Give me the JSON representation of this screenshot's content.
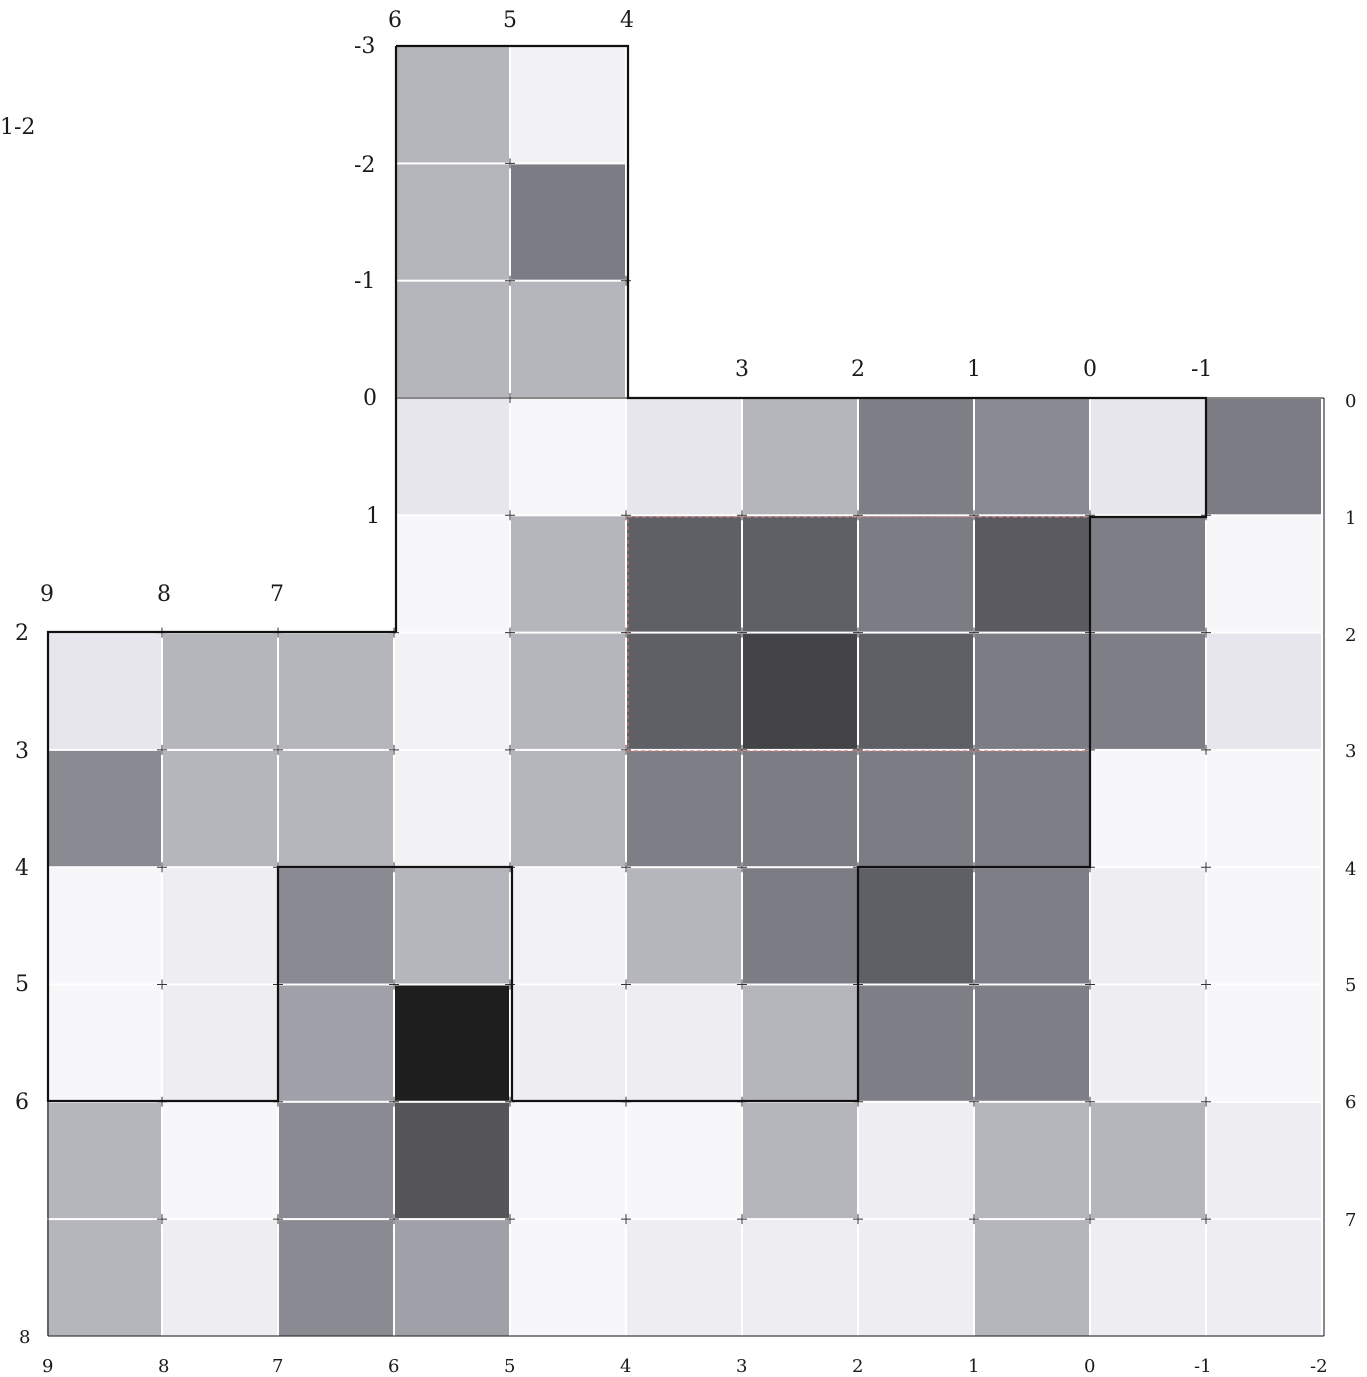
{
  "figure_label": "1-2",
  "upper_top_labels": [
    "6",
    "5",
    "4"
  ],
  "upper_left_labels": [
    "-3",
    "-2",
    "-1",
    "0"
  ],
  "mid_top_labels": [
    "3",
    "2",
    "1",
    "0",
    "-1"
  ],
  "mid_left_labels": [
    "1"
  ],
  "left_top_labels": [
    "9",
    "8",
    "7"
  ],
  "left_side_labels": [
    "2",
    "3",
    "4",
    "5",
    "6",
    "8"
  ],
  "right_side_labels": [
    "0",
    "1",
    "2",
    "3",
    "4",
    "5",
    "6",
    "7"
  ],
  "bottom_labels": [
    "9",
    "8",
    "7",
    "6",
    "5",
    "4",
    "3",
    "2",
    "1",
    "0",
    "-1",
    "-2"
  ],
  "cells": [
    {
      "col": 6,
      "row": -3,
      "shade": "#b5b5bc"
    },
    {
      "col": 5,
      "row": -3,
      "shade": "#f2f2f4"
    },
    {
      "col": 6,
      "row": -2,
      "shade": "#b5b5bc"
    },
    {
      "col": 5,
      "row": -2,
      "shade": "#7c7c84"
    },
    {
      "col": 6,
      "row": -1,
      "shade": "#b5b5bc"
    },
    {
      "col": 5,
      "row": -1,
      "shade": "#b5b5bc"
    },
    {
      "col": 6,
      "row": 0,
      "shade": "#e6e6ec"
    },
    {
      "col": 5,
      "row": 0,
      "shade": "#f7f7f9"
    },
    {
      "col": 4,
      "row": 0,
      "shade": "#e6e6ec"
    },
    {
      "col": 3,
      "row": 0,
      "shade": "#b5b5bc"
    },
    {
      "col": 2,
      "row": 0,
      "shade": "#7e7e86"
    },
    {
      "col": 1,
      "row": 0,
      "shade": "#8a8a92"
    },
    {
      "col": 0,
      "row": 0,
      "shade": "#e6e6ec"
    },
    {
      "col": -1,
      "row": 0,
      "shade": "#7c7c84"
    },
    {
      "col": 6,
      "row": 1,
      "shade": "#f7f7f9"
    },
    {
      "col": 5,
      "row": 1,
      "shade": "#b5b5bc"
    },
    {
      "col": 4,
      "row": 1,
      "shade": "#5f5f66"
    },
    {
      "col": 3,
      "row": 1,
      "shade": "#5f5f66"
    },
    {
      "col": 2,
      "row": 1,
      "shade": "#7c7c84"
    },
    {
      "col": 1,
      "row": 1,
      "shade": "#5a5a60"
    },
    {
      "col": 0,
      "row": 1,
      "shade": "#7e7e86"
    },
    {
      "col": -1,
      "row": 1,
      "shade": "#f7f7f9"
    },
    {
      "col": 9,
      "row": 2,
      "shade": "#e6e6ec"
    },
    {
      "col": 8,
      "row": 2,
      "shade": "#b5b5bc"
    },
    {
      "col": 7,
      "row": 2,
      "shade": "#b5b5bc"
    },
    {
      "col": 6,
      "row": 2,
      "shade": "#f2f2f4"
    },
    {
      "col": 5,
      "row": 2,
      "shade": "#b5b5bc"
    },
    {
      "col": 4,
      "row": 2,
      "shade": "#5f5f66"
    },
    {
      "col": 3,
      "row": 2,
      "shade": "#434348"
    },
    {
      "col": 2,
      "row": 2,
      "shade": "#5f5f66"
    },
    {
      "col": 1,
      "row": 2,
      "shade": "#7c7c84"
    },
    {
      "col": 0,
      "row": 2,
      "shade": "#7e7e86"
    },
    {
      "col": -1,
      "row": 2,
      "shade": "#e6e6ec"
    },
    {
      "col": 9,
      "row": 3,
      "shade": "#8a8a92"
    },
    {
      "col": 8,
      "row": 3,
      "shade": "#b5b5bc"
    },
    {
      "col": 7,
      "row": 3,
      "shade": "#b5b5bc"
    },
    {
      "col": 6,
      "row": 3,
      "shade": "#f2f2f4"
    },
    {
      "col": 5,
      "row": 3,
      "shade": "#b5b5bc"
    },
    {
      "col": 4,
      "row": 3,
      "shade": "#7e7e86"
    },
    {
      "col": 3,
      "row": 3,
      "shade": "#7c7c84"
    },
    {
      "col": 2,
      "row": 3,
      "shade": "#7c7c84"
    },
    {
      "col": 1,
      "row": 3,
      "shade": "#7e7e86"
    },
    {
      "col": 0,
      "row": 3,
      "shade": "#f7f7f9"
    },
    {
      "col": -1,
      "row": 3,
      "shade": "#f7f7f9"
    },
    {
      "col": 9,
      "row": 4,
      "shade": "#f7f7f9"
    },
    {
      "col": 8,
      "row": 4,
      "shade": "#eeeef2"
    },
    {
      "col": 7,
      "row": 4,
      "shade": "#8a8a92"
    },
    {
      "col": 6,
      "row": 4,
      "shade": "#b5b5bc"
    },
    {
      "col": 5,
      "row": 4,
      "shade": "#f2f2f4"
    },
    {
      "col": 4,
      "row": 4,
      "shade": "#b5b5bc"
    },
    {
      "col": 3,
      "row": 4,
      "shade": "#7c7c84"
    },
    {
      "col": 2,
      "row": 4,
      "shade": "#5f5f66"
    },
    {
      "col": 1,
      "row": 4,
      "shade": "#7e7e86"
    },
    {
      "col": 0,
      "row": 4,
      "shade": "#eeeef2"
    },
    {
      "col": -1,
      "row": 4,
      "shade": "#f7f7f9"
    },
    {
      "col": 9,
      "row": 5,
      "shade": "#f7f7f9"
    },
    {
      "col": 8,
      "row": 5,
      "shade": "#eeeef2"
    },
    {
      "col": 7,
      "row": 5,
      "shade": "#a0a0a8"
    },
    {
      "col": 6,
      "row": 5,
      "shade": "#1e1e1e"
    },
    {
      "col": 5,
      "row": 5,
      "shade": "#eeeef2"
    },
    {
      "col": 4,
      "row": 5,
      "shade": "#eeeef2"
    },
    {
      "col": 3,
      "row": 5,
      "shade": "#b5b5bc"
    },
    {
      "col": 2,
      "row": 5,
      "shade": "#7e7e86"
    },
    {
      "col": 1,
      "row": 5,
      "shade": "#7e7e86"
    },
    {
      "col": 0,
      "row": 5,
      "shade": "#eeeef2"
    },
    {
      "col": -1,
      "row": 5,
      "shade": "#f7f7f9"
    },
    {
      "col": 9,
      "row": 6,
      "shade": "#b5b5bc"
    },
    {
      "col": 8,
      "row": 6,
      "shade": "#f7f7f9"
    },
    {
      "col": 7,
      "row": 6,
      "shade": "#8a8a92"
    },
    {
      "col": 6,
      "row": 6,
      "shade": "#55555a"
    },
    {
      "col": 5,
      "row": 6,
      "shade": "#f7f7f9"
    },
    {
      "col": 4,
      "row": 6,
      "shade": "#f7f7f9"
    },
    {
      "col": 3,
      "row": 6,
      "shade": "#b5b5bc"
    },
    {
      "col": 2,
      "row": 6,
      "shade": "#eeeef2"
    },
    {
      "col": 1,
      "row": 6,
      "shade": "#b5b5bc"
    },
    {
      "col": 0,
      "row": 6,
      "shade": "#b5b5bc"
    },
    {
      "col": -1,
      "row": 6,
      "shade": "#eeeef2"
    },
    {
      "col": 9,
      "row": 7,
      "shade": "#b5b5bc"
    },
    {
      "col": 8,
      "row": 7,
      "shade": "#eeeef2"
    },
    {
      "col": 7,
      "row": 7,
      "shade": "#8a8a92"
    },
    {
      "col": 6,
      "row": 7,
      "shade": "#a0a0a8"
    },
    {
      "col": 5,
      "row": 7,
      "shade": "#f7f7f9"
    },
    {
      "col": 4,
      "row": 7,
      "shade": "#eeeef2"
    },
    {
      "col": 3,
      "row": 7,
      "shade": "#eeeef2"
    },
    {
      "col": 2,
      "row": 7,
      "shade": "#eeeef2"
    },
    {
      "col": 1,
      "row": 7,
      "shade": "#b5b5bc"
    },
    {
      "col": 0,
      "row": 7,
      "shade": "#eeeef2"
    },
    {
      "col": -1,
      "row": 7,
      "shade": "#eeeef2"
    }
  ]
}
